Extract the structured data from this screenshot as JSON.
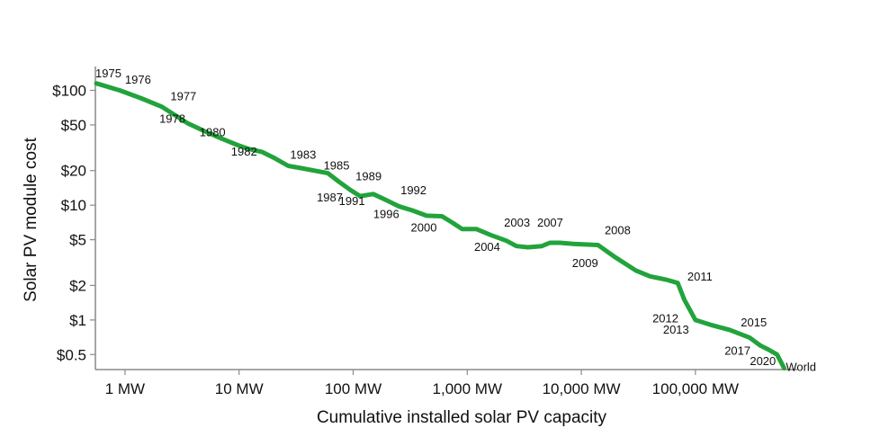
{
  "chart_data": {
    "type": "line",
    "title": "",
    "xlabel": "Cumulative installed solar PV capacity",
    "ylabel": "Solar PV module cost",
    "x_scale": "log",
    "y_scale": "log",
    "xlim": [
      0.55,
      700000
    ],
    "ylim": [
      0.37,
      150
    ],
    "x_ticks": [
      {
        "value": 1,
        "label": "1 MW"
      },
      {
        "value": 10,
        "label": "10 MW"
      },
      {
        "value": 100,
        "label": "100 MW"
      },
      {
        "value": 1000,
        "label": "1,000 MW"
      },
      {
        "value": 10000,
        "label": "10,000 MW"
      },
      {
        "value": 100000,
        "label": "100,000 MW"
      }
    ],
    "y_ticks": [
      {
        "value": 100,
        "label": "$100"
      },
      {
        "value": 50,
        "label": "$50"
      },
      {
        "value": 20,
        "label": "$20"
      },
      {
        "value": 10,
        "label": "$10"
      },
      {
        "value": 5,
        "label": "$5"
      },
      {
        "value": 2,
        "label": "$2"
      },
      {
        "value": 1,
        "label": "$1"
      },
      {
        "value": 0.5,
        "label": "$0.5"
      }
    ],
    "grid": false,
    "line_color": "#22a33b",
    "series": [
      {
        "x": [
          0.56,
          0.9,
          1.4,
          2.1,
          2.8,
          3.5,
          5.0,
          7.0,
          10,
          12,
          16,
          20,
          27,
          35,
          60,
          75,
          95,
          115,
          150,
          190,
          250,
          330,
          440,
          600,
          750,
          900,
          1200,
          1600,
          2200,
          2700,
          3400,
          4500,
          5300,
          6500,
          8500,
          14000,
          20000,
          30000,
          40000,
          55000,
          70000,
          80000,
          100000,
          140000,
          200000,
          300000,
          370000,
          440000,
          520000,
          600000
        ],
        "y": [
          115,
          100,
          85,
          72,
          60,
          52,
          44,
          38,
          33,
          31,
          29,
          26,
          22,
          21,
          19,
          16,
          13.5,
          12,
          12.5,
          11.2,
          9.8,
          9.0,
          8.1,
          8.0,
          7.0,
          6.2,
          6.2,
          5.5,
          4.9,
          4.4,
          4.3,
          4.4,
          4.7,
          4.7,
          4.6,
          4.5,
          3.5,
          2.7,
          2.4,
          2.25,
          2.1,
          1.5,
          1.0,
          0.9,
          0.82,
          0.7,
          0.6,
          0.55,
          0.5,
          0.38
        ]
      }
    ],
    "annotations": [
      {
        "text": "1975",
        "x": 0.55,
        "y": 130
      },
      {
        "text": "1976",
        "x": 1.0,
        "y": 114
      },
      {
        "text": "1977",
        "x": 2.5,
        "y": 82
      },
      {
        "text": "1978",
        "x": 2.0,
        "y": 52
      },
      {
        "text": "1980",
        "x": 4.5,
        "y": 40
      },
      {
        "text": "1982",
        "x": 8.5,
        "y": 27
      },
      {
        "text": "1983",
        "x": 28,
        "y": 25.5
      },
      {
        "text": "1985",
        "x": 55,
        "y": 20.5
      },
      {
        "text": "1989",
        "x": 105,
        "y": 16.5
      },
      {
        "text": "1987",
        "x": 48,
        "y": 10.8
      },
      {
        "text": "1991",
        "x": 75,
        "y": 10.0
      },
      {
        "text": "1992",
        "x": 260,
        "y": 12.5
      },
      {
        "text": "1996",
        "x": 150,
        "y": 7.7
      },
      {
        "text": "2000",
        "x": 320,
        "y": 5.9
      },
      {
        "text": "2003",
        "x": 2100,
        "y": 6.5
      },
      {
        "text": "2007",
        "x": 4100,
        "y": 6.5
      },
      {
        "text": "2004",
        "x": 1150,
        "y": 4.0
      },
      {
        "text": "2008",
        "x": 16000,
        "y": 5.6
      },
      {
        "text": "2009",
        "x": 8300,
        "y": 2.9
      },
      {
        "text": "2011",
        "x": 85000,
        "y": 2.2
      },
      {
        "text": "2012",
        "x": 42000,
        "y": 0.95
      },
      {
        "text": "2013",
        "x": 52000,
        "y": 0.76
      },
      {
        "text": "2015",
        "x": 250000,
        "y": 0.88
      },
      {
        "text": "2017",
        "x": 180000,
        "y": 0.5
      },
      {
        "text": "2020",
        "x": 300000,
        "y": 0.405
      },
      {
        "text": "World",
        "x": 620000,
        "y": 0.36
      }
    ]
  }
}
